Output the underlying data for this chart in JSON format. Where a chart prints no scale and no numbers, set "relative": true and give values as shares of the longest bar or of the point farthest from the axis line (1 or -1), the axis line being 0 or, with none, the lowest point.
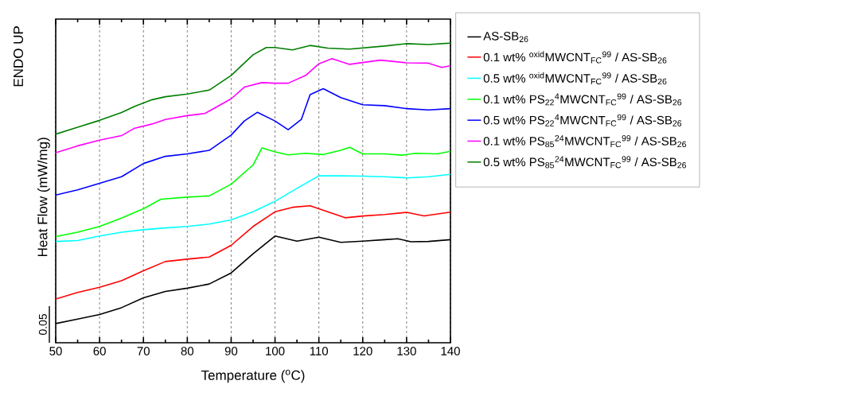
{
  "chart_data": {
    "type": "line",
    "relative": true,
    "xlabel": "Temperature ($^{o}$C)",
    "ylabel": "Heat Flow (mW/mg)",
    "annotations": [
      "ENDO UP",
      "0.05"
    ],
    "xlim": [
      50,
      140
    ],
    "xticks": [
      50,
      60,
      70,
      80,
      90,
      100,
      110,
      120,
      130,
      140
    ],
    "grid": "x",
    "legend": "right",
    "tick_labels": "x",
    "series": [
      {
        "name": "AS-SB$_{26}$",
        "color": "#000000",
        "x": [
          50,
          55,
          60,
          65,
          70,
          75,
          80,
          85,
          90,
          95,
          100,
          105,
          110,
          115,
          120,
          125,
          128,
          131,
          135,
          140
        ],
        "values": [
          0.064,
          0.079,
          0.094,
          0.117,
          0.15,
          0.171,
          0.182,
          0.196,
          0.233,
          0.297,
          0.356,
          0.339,
          0.352,
          0.335,
          0.339,
          0.344,
          0.347,
          0.337,
          0.338,
          0.344
        ]
      },
      {
        "name": "0.1 wt% $^{oxid}$MWCNT$_{FC}$$^{99}$ / AS-SB$_{26}$",
        "color": "#ff0000",
        "x": [
          50,
          55,
          60,
          65,
          70,
          75,
          80,
          85,
          90,
          95,
          100,
          104,
          108,
          112,
          116,
          120,
          125,
          130,
          134,
          140
        ],
        "values": [
          0.146,
          0.168,
          0.185,
          0.207,
          0.24,
          0.271,
          0.279,
          0.286,
          0.325,
          0.388,
          0.437,
          0.452,
          0.457,
          0.437,
          0.417,
          0.423,
          0.428,
          0.435,
          0.423,
          0.436
        ]
      },
      {
        "name": "0.5 wt% $^{oxid}$MWCNT$_{FC}$$^{99}$ / AS-SB$_{26}$",
        "color": "#00ffff",
        "x": [
          50,
          55,
          60,
          65,
          70,
          75,
          80,
          85,
          90,
          95,
          100,
          105,
          110,
          115,
          120,
          125,
          130,
          135,
          140
        ],
        "values": [
          0.338,
          0.341,
          0.356,
          0.369,
          0.377,
          0.383,
          0.388,
          0.396,
          0.41,
          0.437,
          0.472,
          0.515,
          0.557,
          0.557,
          0.556,
          0.554,
          0.55,
          0.554,
          0.562
        ]
      },
      {
        "name": "0.1 wt% PS$_{22}$$^{4}$MWCNT$_{FC}$$^{99}$ / AS-SB$_{26}$",
        "color": "#00ff00",
        "x": [
          50,
          55,
          60,
          65,
          70,
          74,
          80,
          85,
          90,
          95,
          97,
          100,
          103,
          107,
          111,
          115,
          117,
          120,
          125,
          129,
          132,
          137,
          140
        ],
        "values": [
          0.354,
          0.369,
          0.388,
          0.416,
          0.447,
          0.479,
          0.486,
          0.49,
          0.529,
          0.593,
          0.65,
          0.637,
          0.627,
          0.632,
          0.628,
          0.642,
          0.652,
          0.63,
          0.63,
          0.626,
          0.632,
          0.63,
          0.639
        ]
      },
      {
        "name": "0.5 wt% PS$_{22}$$^{4}$MWCNT$_{FC}$$^{99}$ / AS-SB$_{26}$",
        "color": "#0000ff",
        "x": [
          50,
          55,
          60,
          65,
          70,
          75,
          80,
          85,
          90,
          93,
          96,
          100,
          103,
          106,
          108,
          111,
          115,
          120,
          125,
          130,
          135,
          140
        ],
        "values": [
          0.493,
          0.51,
          0.532,
          0.554,
          0.598,
          0.622,
          0.63,
          0.642,
          0.693,
          0.74,
          0.769,
          0.74,
          0.711,
          0.745,
          0.828,
          0.848,
          0.818,
          0.794,
          0.791,
          0.781,
          0.777,
          0.781
        ]
      },
      {
        "name": "0.1 wt% PS$_{85}$$^{24}$MWCNT$_{FC}$$^{99}$ / AS-SB$_{26}$",
        "color": "#ff00ff",
        "x": [
          50,
          55,
          60,
          65,
          68,
          72,
          75,
          80,
          84,
          90,
          93,
          97,
          100,
          103,
          107,
          110,
          113,
          117,
          124,
          130,
          135,
          138,
          140
        ],
        "values": [
          0.634,
          0.657,
          0.676,
          0.691,
          0.716,
          0.73,
          0.745,
          0.758,
          0.765,
          0.814,
          0.853,
          0.868,
          0.866,
          0.866,
          0.892,
          0.931,
          0.948,
          0.929,
          0.943,
          0.934,
          0.933,
          0.919,
          0.924
        ]
      },
      {
        "name": "0.5 wt% PS$_{85}$$^{24}$MWCNT$_{FC}$$^{99}$ / AS-SB$_{26}$",
        "color": "#007f00",
        "x": [
          50,
          55,
          60,
          65,
          68,
          72,
          75,
          80,
          85,
          90,
          95,
          98,
          100,
          104,
          108,
          112,
          117,
          125,
          130,
          135,
          140
        ],
        "values": [
          0.696,
          0.719,
          0.742,
          0.768,
          0.789,
          0.811,
          0.821,
          0.83,
          0.843,
          0.892,
          0.961,
          0.985,
          0.985,
          0.977,
          0.992,
          0.983,
          0.98,
          0.99,
          0.998,
          0.995,
          1
        ]
      }
    ]
  }
}
